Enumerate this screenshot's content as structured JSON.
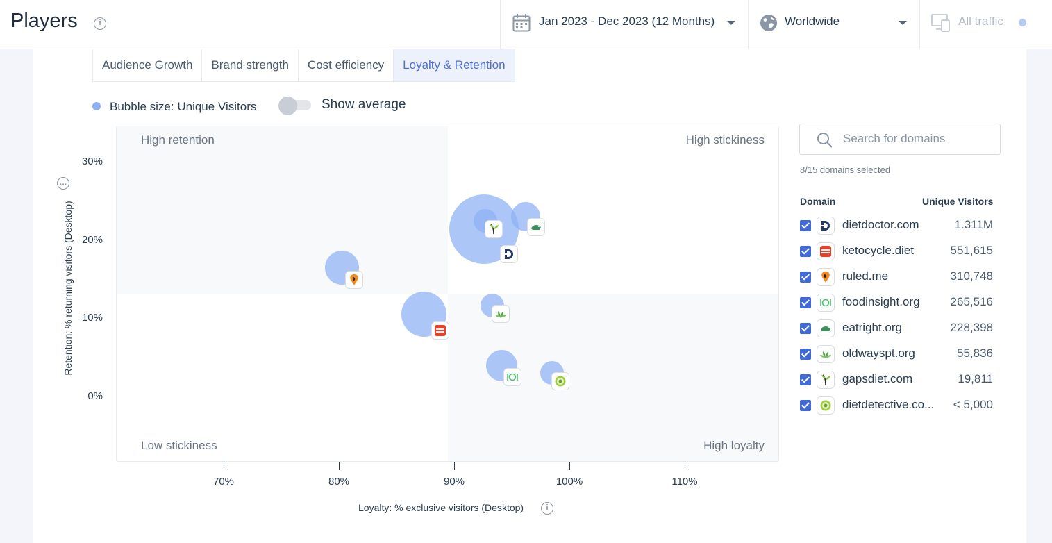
{
  "header": {
    "title": "Players",
    "date_range": "Jan 2023 - Dec 2023 (12 Months)",
    "region": "Worldwide",
    "traffic": "All traffic"
  },
  "tabs": [
    "Audience Growth",
    "Brand strength",
    "Cost efficiency",
    "Loyalty & Retention"
  ],
  "active_tab": "Loyalty & Retention",
  "legend": {
    "bubble_size": "Bubble size: Unique Visitors",
    "toggle_label": "Show average",
    "toggle_on": false
  },
  "quadrants": {
    "top_left": "High retention",
    "top_right": "High stickiness",
    "bottom_left": "Low stickiness",
    "bottom_right": "High loyalty"
  },
  "search": {
    "placeholder": "Search for domains"
  },
  "selection": "8/15 domains selected",
  "table_headers": {
    "domain": "Domain",
    "visitors": "Unique Visitors"
  },
  "domains": [
    {
      "name": "dietdoctor.com",
      "visitors": "1.311M",
      "icon": "diet-doctor-logo",
      "checked": true
    },
    {
      "name": "ketocycle.diet",
      "visitors": "551,615",
      "icon": "ketocycle-logo",
      "checked": true
    },
    {
      "name": "ruled.me",
      "visitors": "310,748",
      "icon": "ruled-me-logo",
      "checked": true
    },
    {
      "name": "foodinsight.org",
      "visitors": "265,516",
      "icon": "foodinsight-logo",
      "checked": true
    },
    {
      "name": "eatright.org",
      "visitors": "228,398",
      "icon": "eatright-logo",
      "checked": true
    },
    {
      "name": "oldwayspt.org",
      "visitors": "55,836",
      "icon": "oldways-logo",
      "checked": true
    },
    {
      "name": "gapsdiet.com",
      "visitors": "19,811",
      "icon": "gapsdiet-logo",
      "checked": true
    },
    {
      "name": "dietdetective.co...",
      "visitors": "< 5,000",
      "icon": "dietdetective-logo",
      "checked": true
    }
  ],
  "chart_data": {
    "type": "scatter",
    "xlabel": "Loyalty: % exclusive visitors (Desktop)",
    "ylabel": "Retention: % returning visitors (Desktop)",
    "x_ticks": [
      "70%",
      "80%",
      "90%",
      "100%",
      "110%"
    ],
    "y_ticks": [
      "30%",
      "20%",
      "10%",
      "0%"
    ],
    "xlim": [
      60.8,
      118.2
    ],
    "ylim": [
      -8.3,
      34.5
    ],
    "quadrant_split": {
      "x": 89.5,
      "y": 13.0
    },
    "size_metric": "Unique Visitors",
    "points": [
      {
        "domain": "dietdoctor.com",
        "x": 92.6,
        "y": 21.4,
        "size": 1311000,
        "icon": "diet-doctor-logo"
      },
      {
        "domain": "ketocycle.diet",
        "x": 87.4,
        "y": 10.6,
        "size": 551615,
        "icon": "ketocycle-logo"
      },
      {
        "domain": "ruled.me",
        "x": 80.3,
        "y": 16.5,
        "size": 310748,
        "icon": "ruled-me-logo"
      },
      {
        "domain": "foodinsight.org",
        "x": 94.1,
        "y": 4.0,
        "size": 265516,
        "icon": "foodinsight-logo"
      },
      {
        "domain": "eatright.org",
        "x": 96.2,
        "y": 23.0,
        "size": 228398,
        "icon": "eatright-logo"
      },
      {
        "domain": "oldwayspt.org",
        "x": 93.3,
        "y": 11.7,
        "size": 55836,
        "icon": "oldways-logo"
      },
      {
        "domain": "gapsdiet.com",
        "x": 92.7,
        "y": 22.5,
        "size": 19811,
        "icon": "gapsdiet-logo"
      },
      {
        "domain": "dietdetective.com",
        "x": 98.5,
        "y": 3.1,
        "size": 5000,
        "icon": "dietdetective-logo"
      }
    ]
  }
}
